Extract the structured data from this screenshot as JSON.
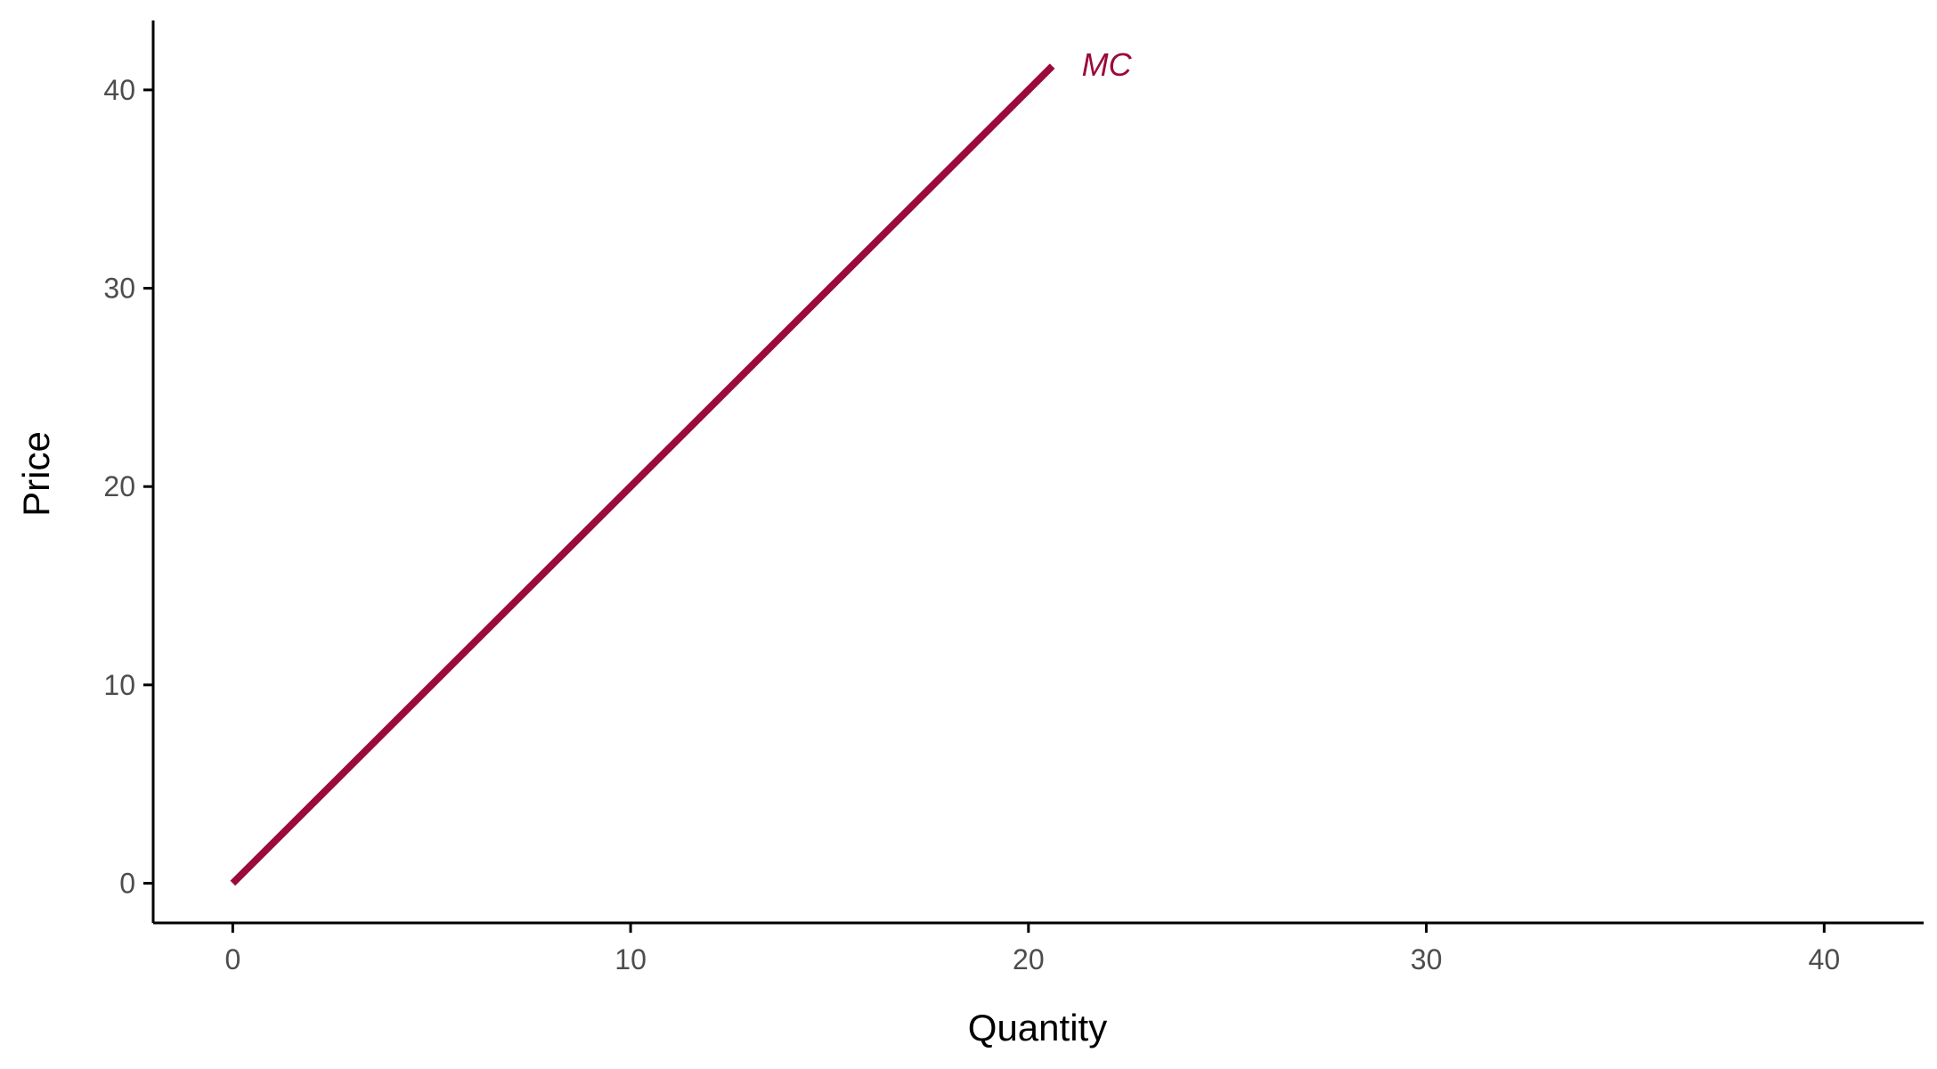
{
  "chart_data": {
    "type": "line",
    "title": "",
    "xlabel": "Quantity",
    "ylabel": "Price",
    "xlim": [
      -2,
      42.5
    ],
    "ylim": [
      -2,
      43.5
    ],
    "xticks": [
      0,
      10,
      20,
      30,
      40
    ],
    "yticks": [
      0,
      10,
      20,
      30,
      40
    ],
    "grid": false,
    "series": [
      {
        "name": "MC",
        "color": "#9b0a3c",
        "x": [
          0,
          20.6
        ],
        "y": [
          0,
          41.2
        ]
      }
    ]
  }
}
